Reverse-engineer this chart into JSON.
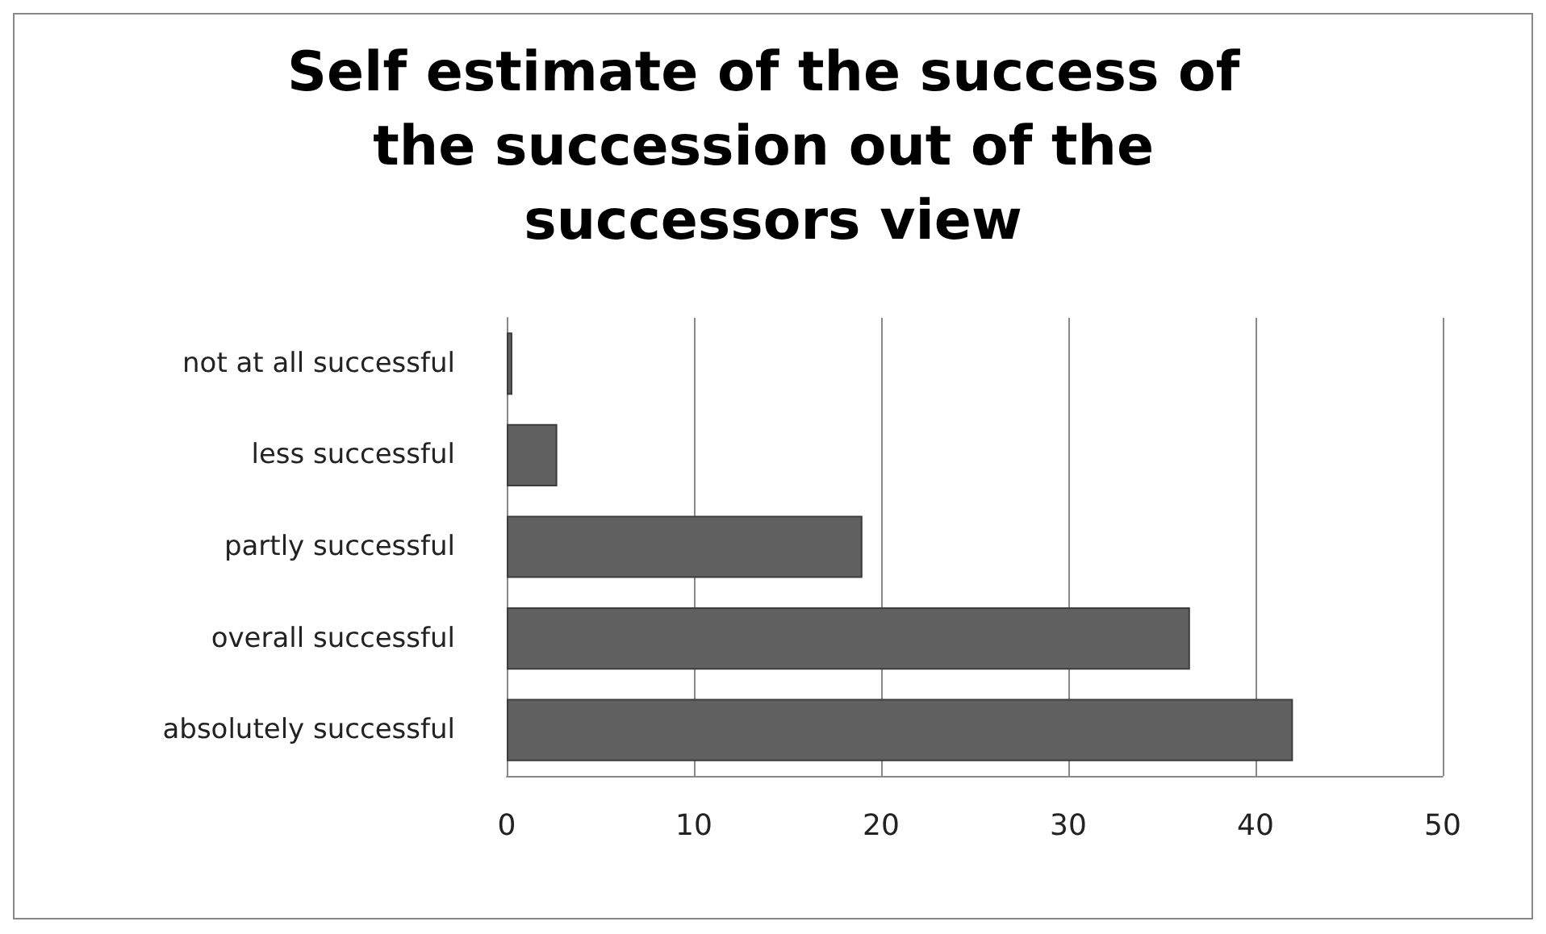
{
  "chart_data": {
    "type": "bar",
    "orientation": "horizontal",
    "title": "Self estimate of the success of the succession out of the successors view",
    "categories": [
      "not at all successful",
      "less successful",
      "partly successful",
      "overall successful",
      "absolutely successful"
    ],
    "values": [
      0.3,
      2.7,
      19,
      36.5,
      42
    ],
    "color": "#606060",
    "xlim": [
      0,
      50
    ],
    "xticks": [
      0,
      10,
      20,
      30,
      40,
      50
    ],
    "grid": "x"
  }
}
